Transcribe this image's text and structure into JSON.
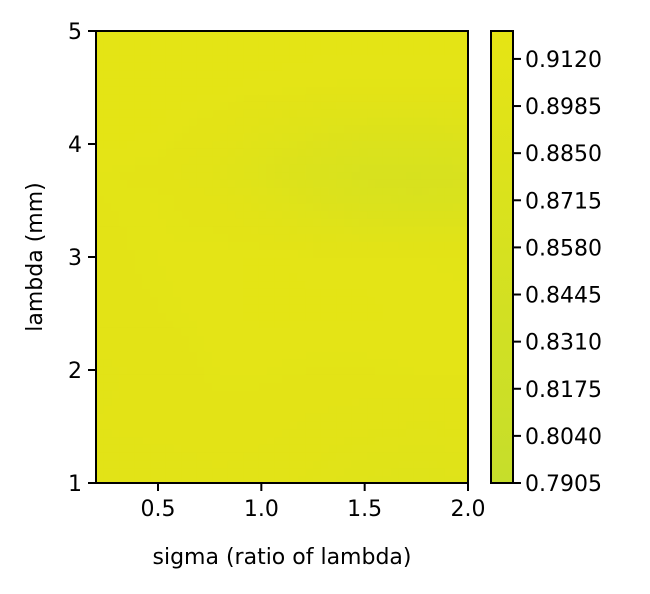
{
  "chart_data": {
    "type": "heatmap",
    "xlabel": "sigma (ratio of lambda)",
    "ylabel": "lambda (mm)",
    "xlim": [
      0.2,
      2.0
    ],
    "ylim": [
      1,
      5
    ],
    "xticks": [
      "0.5",
      "1.0",
      "1.5",
      "2.0"
    ],
    "yticks": [
      "1",
      "2",
      "3",
      "4",
      "5"
    ],
    "colorbar": {
      "range": [
        0.7905,
        0.92
      ],
      "ticks": [
        "0.7905",
        "0.8040",
        "0.8175",
        "0.8310",
        "0.8445",
        "0.8580",
        "0.8715",
        "0.8850",
        "0.8985",
        "0.9120"
      ],
      "color_low": "#c6de2b",
      "color_high": "#e6e414"
    },
    "x": [
      0.2,
      0.5,
      0.8,
      1.0,
      1.25,
      1.5,
      1.75,
      2.0
    ],
    "y": [
      1,
      1.5,
      2,
      2.5,
      3,
      3.5,
      3.75,
      4,
      4.5,
      5
    ],
    "z": [
      [
        0.902,
        0.903,
        0.905,
        0.904,
        0.9,
        0.893,
        0.89,
        0.893
      ],
      [
        0.906,
        0.907,
        0.908,
        0.907,
        0.905,
        0.903,
        0.901,
        0.902
      ],
      [
        0.905,
        0.907,
        0.91,
        0.91,
        0.909,
        0.909,
        0.91,
        0.91
      ],
      [
        0.908,
        0.909,
        0.911,
        0.912,
        0.912,
        0.912,
        0.911,
        0.911
      ],
      [
        0.908,
        0.91,
        0.911,
        0.912,
        0.911,
        0.911,
        0.91,
        0.909
      ],
      [
        0.909,
        0.91,
        0.907,
        0.898,
        0.885,
        0.872,
        0.868,
        0.87
      ],
      [
        0.91,
        0.908,
        0.9,
        0.888,
        0.874,
        0.862,
        0.86,
        0.864
      ],
      [
        0.912,
        0.911,
        0.905,
        0.895,
        0.884,
        0.876,
        0.875,
        0.878
      ],
      [
        0.913,
        0.913,
        0.912,
        0.911,
        0.91,
        0.909,
        0.909,
        0.909
      ],
      [
        0.913,
        0.913,
        0.913,
        0.913,
        0.913,
        0.913,
        0.913,
        0.913
      ]
    ]
  }
}
